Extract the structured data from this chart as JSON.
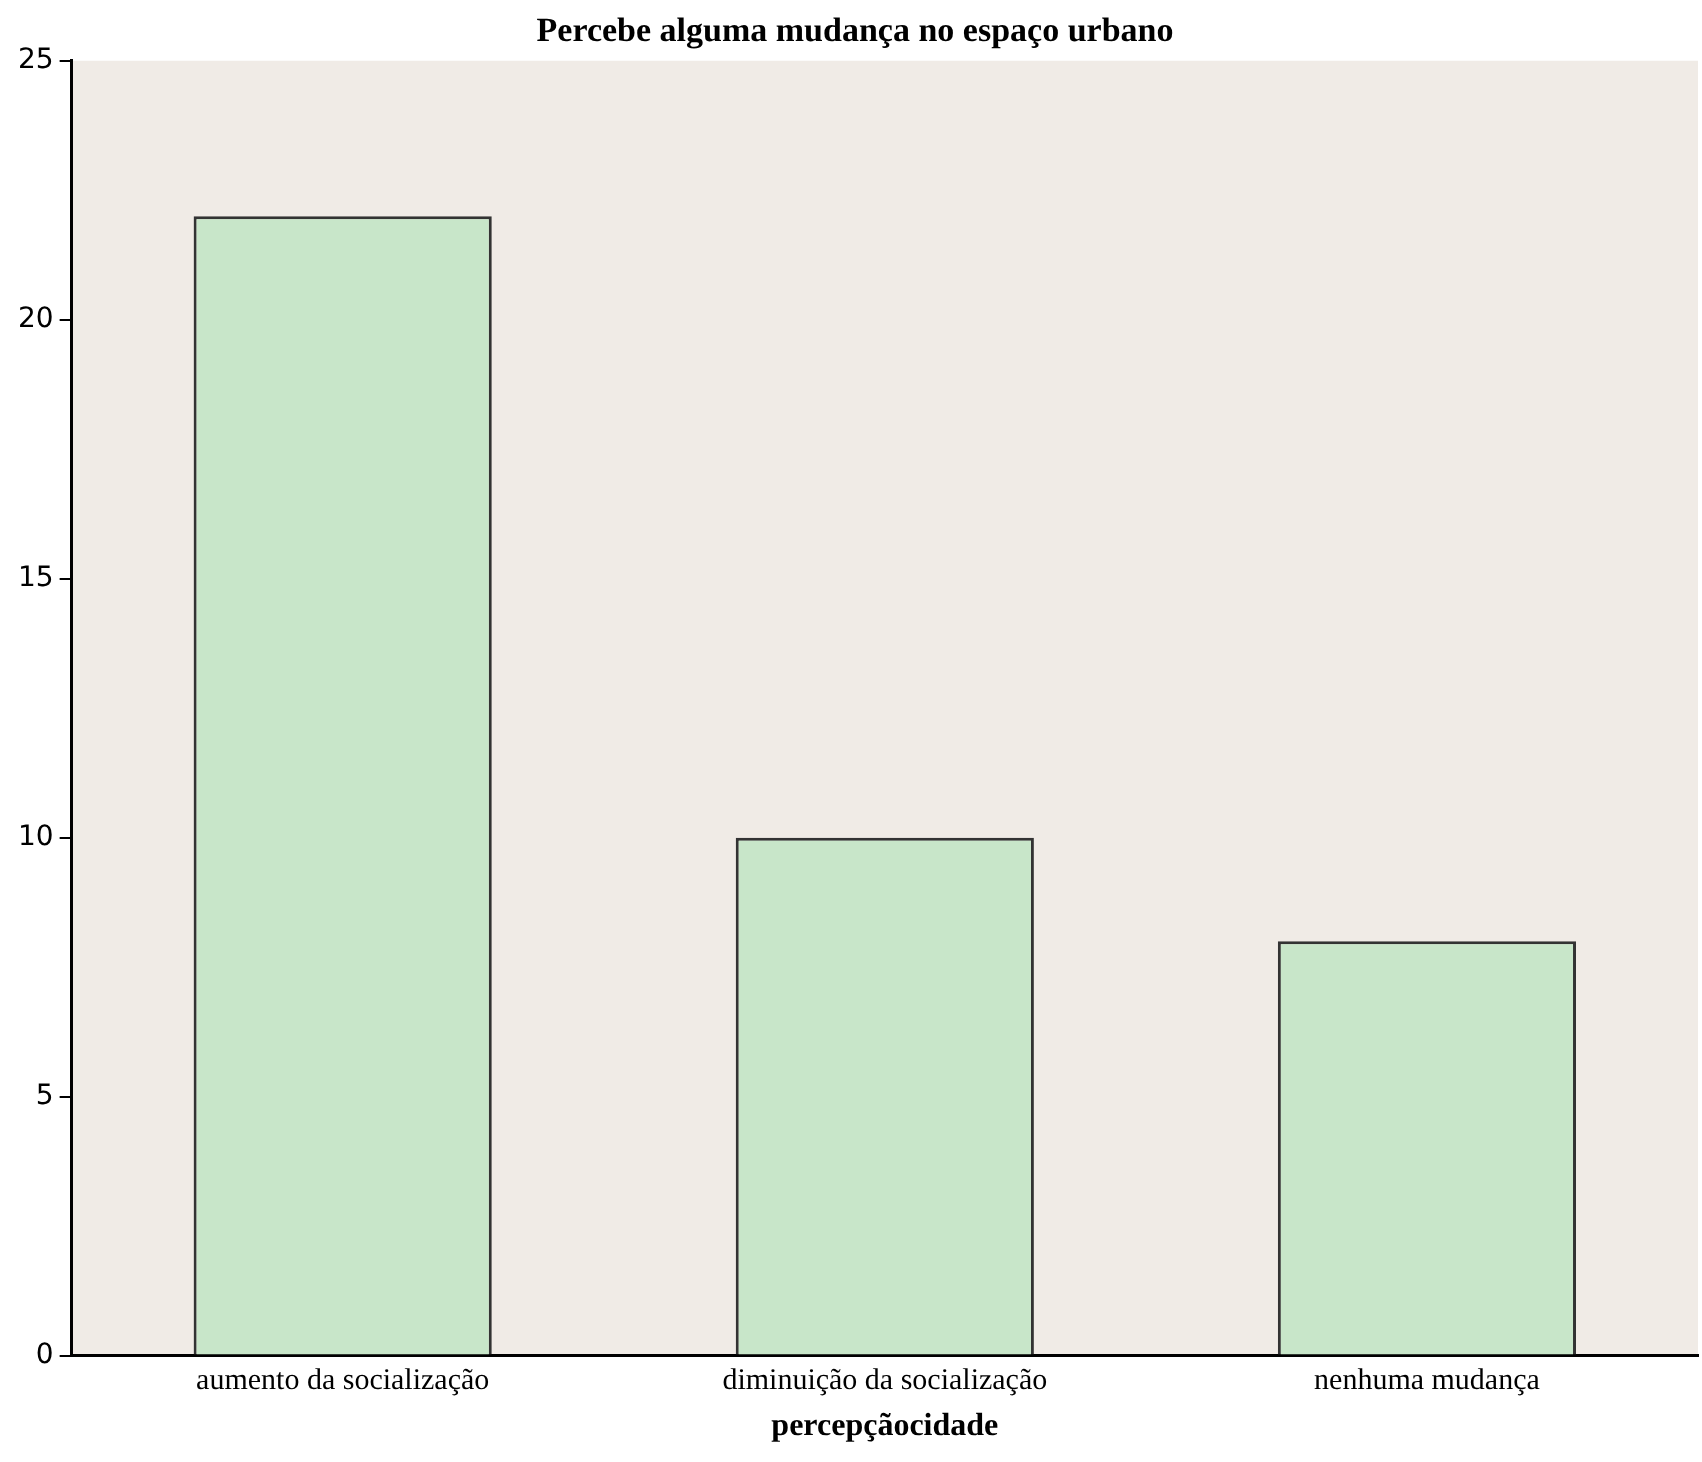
{
  "chart_data": {
    "type": "bar",
    "title": "Percebe alguma mudança no espaço urbano",
    "xlabel": "percepçãocidade",
    "categories": [
      "aumento da socialização",
      "diminuição da socialização",
      "nenhuma mudança"
    ],
    "values": [
      22,
      10,
      8
    ],
    "color": "#c8e6c9",
    "ylim": [
      0,
      25
    ],
    "yticks": [
      0,
      5,
      10,
      15,
      20,
      25
    ],
    "grid": false,
    "legend": false
  }
}
